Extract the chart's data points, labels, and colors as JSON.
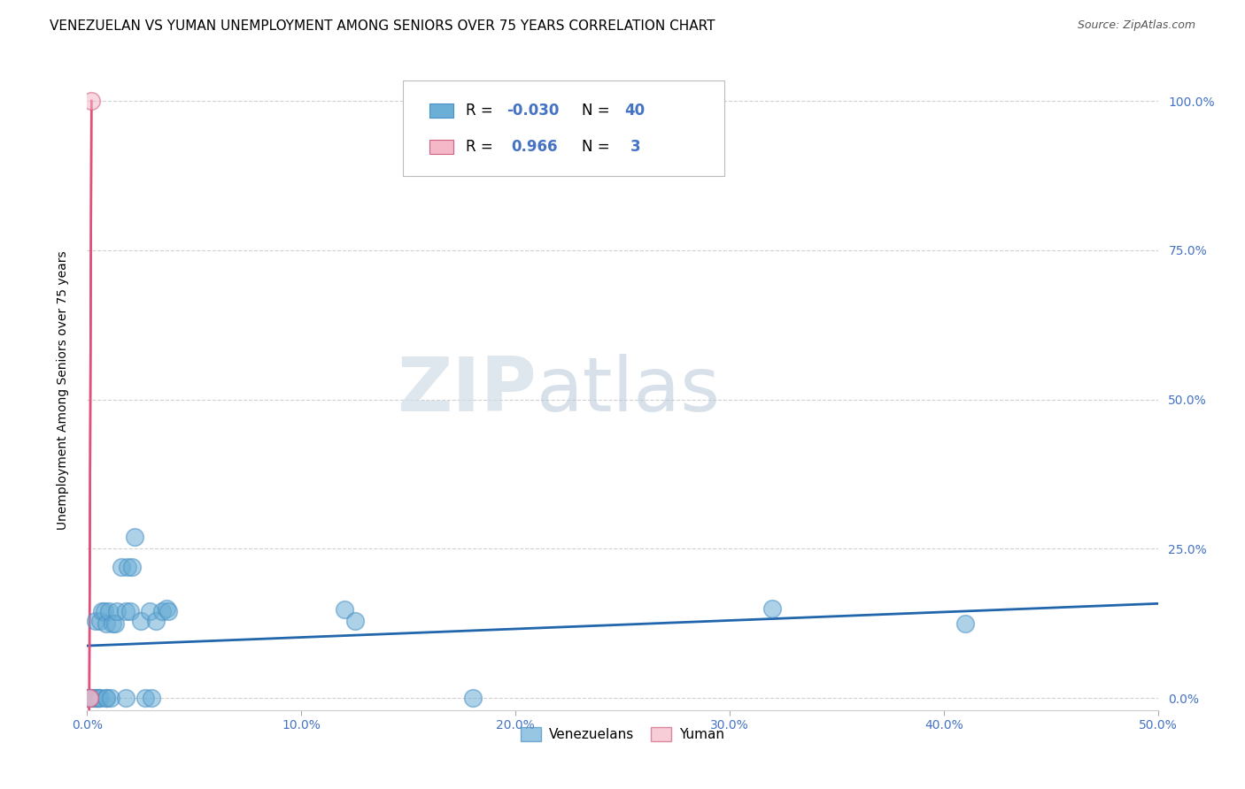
{
  "title": "VENEZUELAN VS YUMAN UNEMPLOYMENT AMONG SENIORS OVER 75 YEARS CORRELATION CHART",
  "source": "Source: ZipAtlas.com",
  "ylabel": "Unemployment Among Seniors over 75 years",
  "xlim": [
    0.0,
    0.5
  ],
  "ylim": [
    -0.02,
    1.05
  ],
  "xticks": [
    0.0,
    0.1,
    0.2,
    0.3,
    0.4,
    0.5
  ],
  "xtick_labels": [
    "0.0%",
    "10.0%",
    "20.0%",
    "30.0%",
    "40.0%",
    "50.0%"
  ],
  "yticks": [
    0.0,
    0.25,
    0.5,
    0.75,
    1.0
  ],
  "ytick_labels_right": [
    "0.0%",
    "25.0%",
    "50.0%",
    "75.0%",
    "100.0%"
  ],
  "venezuelan_points": [
    [
      0.0,
      0.0
    ],
    [
      0.0,
      0.0
    ],
    [
      0.0,
      0.0
    ],
    [
      0.002,
      0.0
    ],
    [
      0.003,
      0.0
    ],
    [
      0.004,
      0.0
    ],
    [
      0.004,
      0.13
    ],
    [
      0.005,
      0.0
    ],
    [
      0.005,
      0.0
    ],
    [
      0.006,
      0.0
    ],
    [
      0.006,
      0.13
    ],
    [
      0.007,
      0.145
    ],
    [
      0.008,
      0.145
    ],
    [
      0.009,
      0.0
    ],
    [
      0.009,
      0.0
    ],
    [
      0.009,
      0.125
    ],
    [
      0.01,
      0.145
    ],
    [
      0.011,
      0.0
    ],
    [
      0.012,
      0.125
    ],
    [
      0.013,
      0.125
    ],
    [
      0.014,
      0.145
    ],
    [
      0.016,
      0.22
    ],
    [
      0.018,
      0.0
    ],
    [
      0.018,
      0.145
    ],
    [
      0.019,
      0.22
    ],
    [
      0.02,
      0.145
    ],
    [
      0.021,
      0.22
    ],
    [
      0.022,
      0.27
    ],
    [
      0.025,
      0.13
    ],
    [
      0.027,
      0.0
    ],
    [
      0.029,
      0.145
    ],
    [
      0.03,
      0.0
    ],
    [
      0.032,
      0.13
    ],
    [
      0.035,
      0.145
    ],
    [
      0.037,
      0.15
    ],
    [
      0.038,
      0.145
    ],
    [
      0.12,
      0.148
    ],
    [
      0.125,
      0.13
    ],
    [
      0.18,
      0.0
    ],
    [
      0.32,
      0.15
    ],
    [
      0.41,
      0.125
    ]
  ],
  "yuman_points": [
    [
      0.001,
      0.0
    ],
    [
      0.001,
      0.0
    ],
    [
      0.002,
      1.0
    ]
  ],
  "venezuelan_color": "#6baed6",
  "venezuelan_edge_color": "#4a90c4",
  "yuman_color": "#f4b8c8",
  "yuman_edge_color": "#d06080",
  "trend_venezuelan_color": "#2166ac",
  "trend_yuman_color": "#e0507a",
  "background_color": "#ffffff",
  "grid_color": "#cccccc",
  "title_fontsize": 11,
  "tick_label_color": "#4472c4",
  "watermark_color": "#d0dde8",
  "r_value_color": "#4472c4",
  "n_value_color": "#4472c4"
}
